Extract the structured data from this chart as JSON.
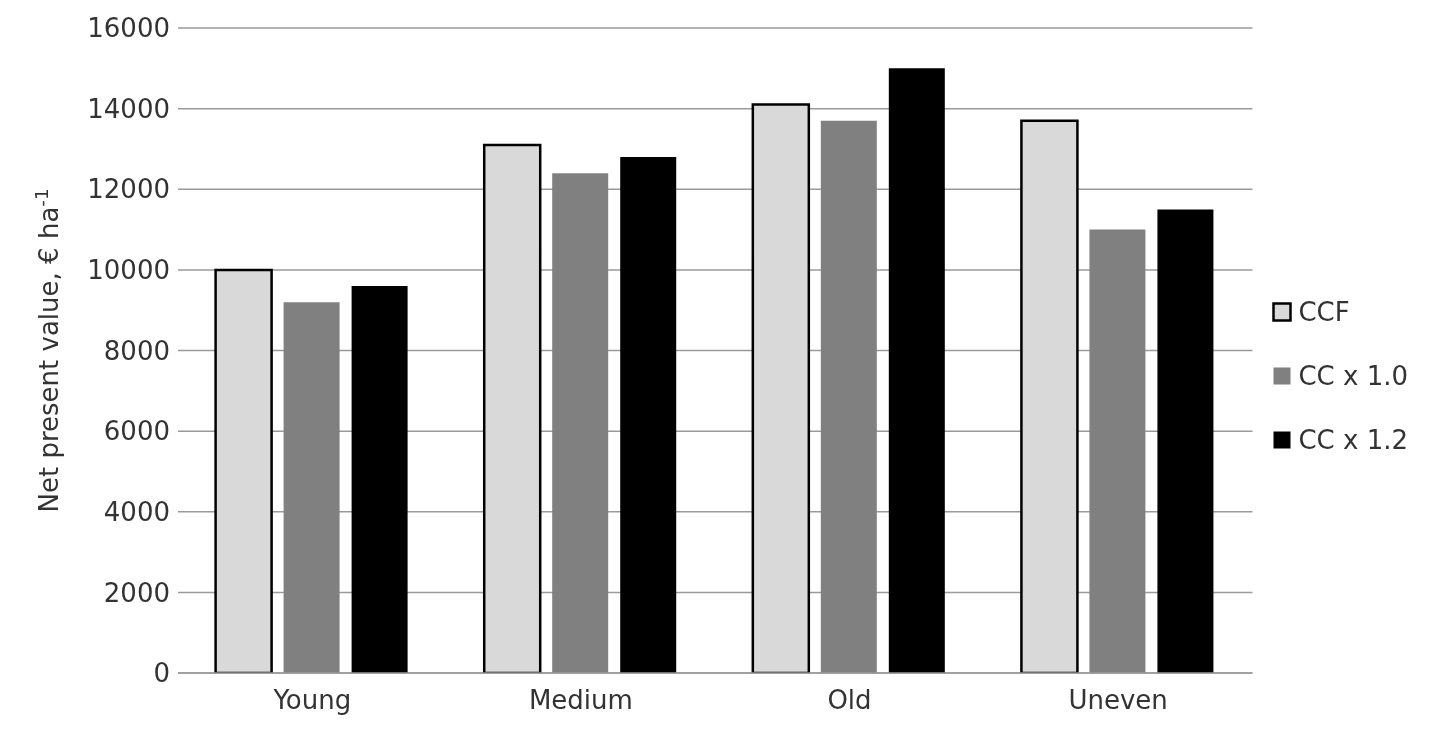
{
  "chart_data": {
    "type": "bar",
    "ylabel": "Net present value, € ha$^{-1}$",
    "categories": [
      "Young",
      "Medium",
      "Old",
      "Uneven"
    ],
    "series": [
      {
        "name": "CCF",
        "color": "#d9d9d9",
        "values": [
          10000,
          13100,
          14100,
          13700
        ]
      },
      {
        "name": "CC x 1.0",
        "color": "#808080",
        "values": [
          9200,
          12400,
          13700,
          11000
        ]
      },
      {
        "name": "CC x 1.2",
        "color": "#000000",
        "values": [
          9600,
          12800,
          15000,
          11500
        ]
      }
    ],
    "ylim": [
      0,
      16000
    ],
    "yticks": [
      0,
      2000,
      4000,
      6000,
      8000,
      10000,
      12000,
      14000,
      16000
    ],
    "grid": "y",
    "legend": "right"
  }
}
